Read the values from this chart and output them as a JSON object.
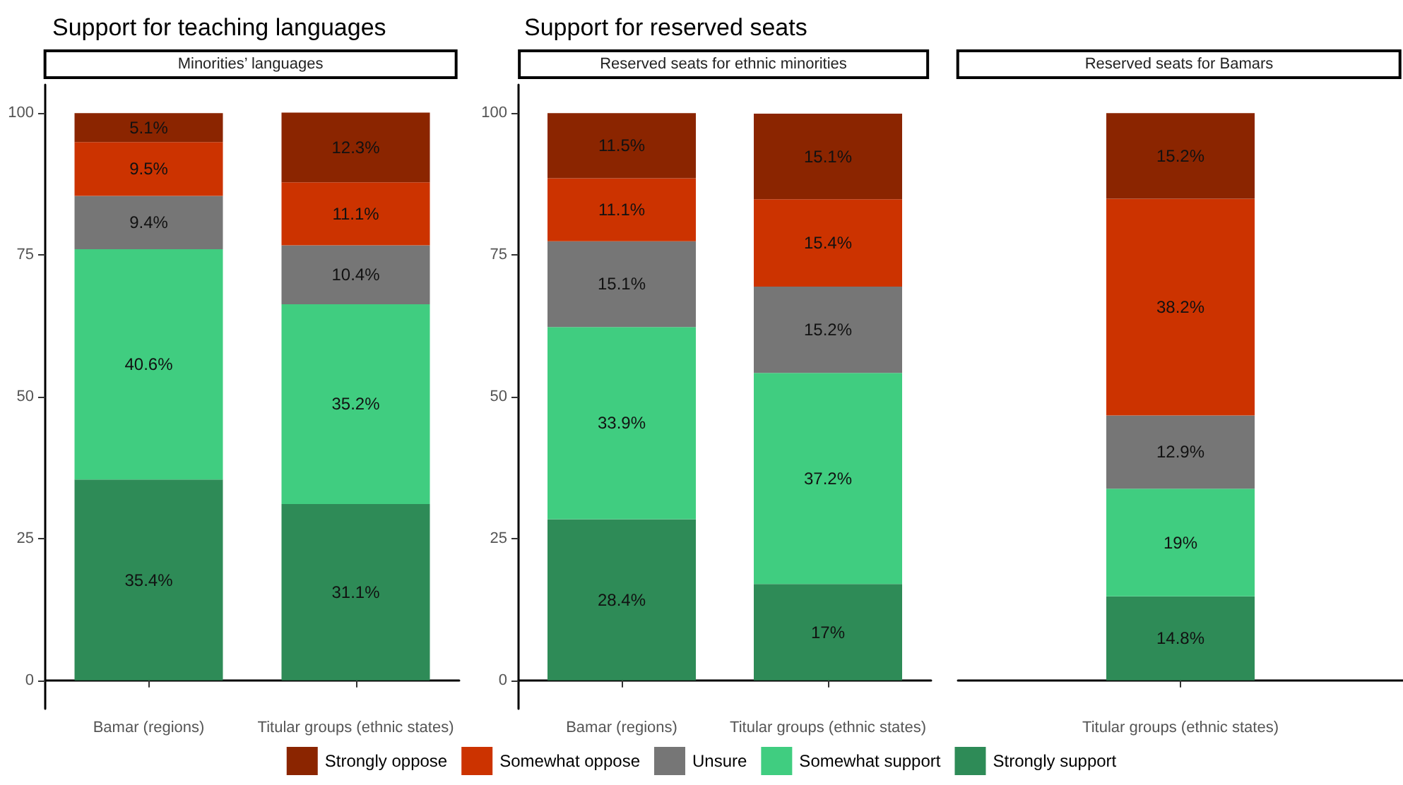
{
  "chart_data": [
    {
      "type": "bar",
      "title": "Support for teaching languages",
      "subtitle": "Minorities’ languages",
      "categories": [
        "Bamar (regions)",
        "Titular groups (ethnic states)"
      ],
      "stacked": true,
      "ylim": [
        -5,
        105
      ],
      "yticks": [
        0,
        25,
        50,
        75,
        100
      ],
      "grid": false,
      "legend": "bottom",
      "series": [
        {
          "name": "Strongly support",
          "color": "#2e8b57",
          "values": [
            35.4,
            31.1
          ],
          "value_labels": [
            "35.4%",
            "31.1%"
          ]
        },
        {
          "name": "Somewhat support",
          "color": "#40cd80",
          "values": [
            40.6,
            35.2
          ],
          "value_labels": [
            "40.6%",
            "35.2%"
          ]
        },
        {
          "name": "Unsure",
          "color": "#767676",
          "values": [
            9.4,
            10.4
          ],
          "value_labels": [
            "9.4%",
            "10.4%"
          ]
        },
        {
          "name": "Somewhat oppose",
          "color": "#cc3300",
          "values": [
            9.5,
            11.1
          ],
          "value_labels": [
            "9.5%",
            "11.1%"
          ]
        },
        {
          "name": "Strongly oppose",
          "color": "#8b2500",
          "values": [
            5.1,
            12.3
          ],
          "value_labels": [
            "5.1%",
            "12.3%"
          ]
        }
      ]
    },
    {
      "type": "bar",
      "title": "Support for reserved seats",
      "subtitle": "Reserved seats for ethnic minorities",
      "categories": [
        "Bamar (regions)",
        "Titular groups (ethnic states)"
      ],
      "stacked": true,
      "ylim": [
        -5,
        105
      ],
      "yticks": [
        0,
        25,
        50,
        75,
        100
      ],
      "grid": false,
      "legend": false,
      "series": [
        {
          "color": "#2e8b57",
          "values": [
            28.4,
            17
          ],
          "value_labels": [
            "28.4%",
            "17%"
          ]
        },
        {
          "color": "#40cd80",
          "values": [
            33.9,
            37.2
          ],
          "value_labels": [
            "33.9%",
            "37.2%"
          ]
        },
        {
          "color": "#767676",
          "values": [
            15.1,
            15.2
          ],
          "value_labels": [
            "15.1%",
            "15.2%"
          ]
        },
        {
          "color": "#cc3300",
          "values": [
            11.1,
            15.4
          ],
          "value_labels": [
            "11.1%",
            "15.4%"
          ]
        },
        {
          "color": "#8b2500",
          "values": [
            11.5,
            15.1
          ],
          "value_labels": [
            "11.5%",
            "15.1%"
          ]
        }
      ]
    },
    {
      "type": "bar",
      "subtitle": "Reserved seats for Bamars",
      "categories": [
        "Titular groups (ethnic states)"
      ],
      "stacked": true,
      "ylim": [
        0,
        100
      ],
      "yticks": [
        0,
        25,
        50,
        75,
        100
      ],
      "grid": false,
      "legend": false,
      "tick_labels": "x",
      "series": [
        {
          "color": "#2e8b57",
          "values": [
            14.8
          ],
          "value_labels": [
            "14.8%"
          ]
        },
        {
          "color": "#40cd80",
          "values": [
            19
          ],
          "value_labels": [
            "19%"
          ]
        },
        {
          "color": "#767676",
          "values": [
            12.9
          ],
          "value_labels": [
            "12.9%"
          ]
        },
        {
          "color": "#cc3300",
          "values": [
            38.2
          ],
          "value_labels": [
            "38.2%"
          ]
        },
        {
          "color": "#8b2500",
          "values": [
            15.2
          ],
          "value_labels": [
            "15.2%"
          ]
        }
      ]
    }
  ]
}
